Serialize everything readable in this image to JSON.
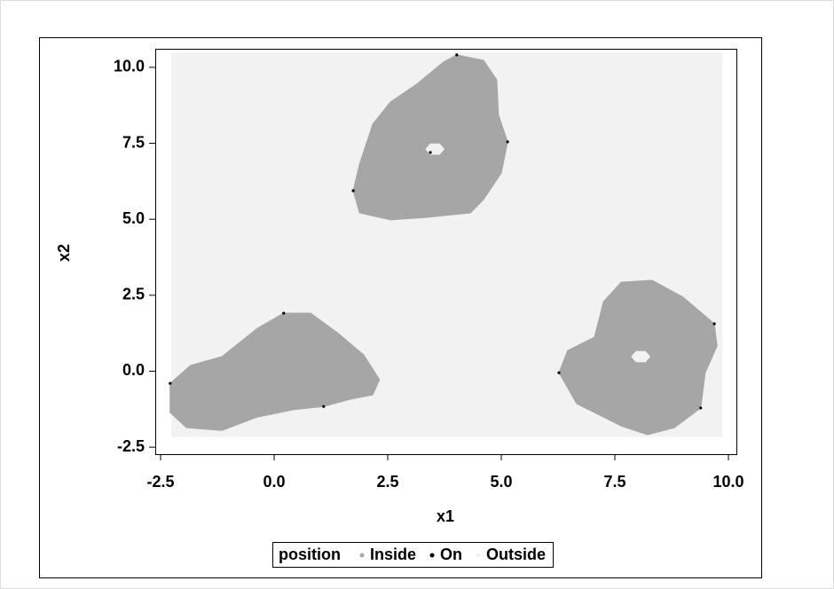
{
  "chart_data": {
    "type": "scatter",
    "xlabel": "x1",
    "ylabel": "x2",
    "legend_title": "position",
    "legend": "bottom",
    "xlim": [
      -2.617,
      10.176
    ],
    "ylim": [
      -2.73,
      10.61
    ],
    "xticks": [
      -2.5,
      {
        "value": 0,
        "label": "0.0"
      },
      2.5,
      {
        "value": 5,
        "label": "5.0"
      },
      7.5,
      {
        "value": 10,
        "label": "10.0"
      }
    ],
    "yticks": [
      -2.5,
      {
        "value": 0,
        "label": "0.0"
      },
      2.5,
      {
        "value": 5,
        "label": "5.0"
      },
      7.5,
      {
        "value": 10,
        "label": "10.0"
      }
    ],
    "series": [
      {
        "name": "Inside",
        "color": "#a6a6a6",
        "x": [
          4.02,
          4.61,
          4.9,
          4.94,
          5.14,
          5.0,
          4.61,
          4.32,
          3.34,
          2.56,
          1.88,
          1.74,
          1.88,
          2.17,
          2.56,
          3.14,
          3.73,
          null,
          -2.29,
          -1.84,
          -1.15,
          -0.37,
          0.21,
          0.8,
          1.39,
          1.97,
          2.32,
          2.17,
          1.68,
          1.09,
          0.41,
          -0.37,
          -1.15,
          -1.93,
          -2.29,
          null,
          7.25,
          7.64,
          8.32,
          9.0,
          9.69,
          9.75,
          9.49,
          9.39,
          8.81,
          8.22,
          7.64,
          6.66,
          6.27,
          6.46,
          7.05
        ],
        "y": [
          10.41,
          10.23,
          9.59,
          8.42,
          7.55,
          6.52,
          5.65,
          5.21,
          5.06,
          4.98,
          5.21,
          5.94,
          6.82,
          8.13,
          8.86,
          9.45,
          10.18,
          null,
          -0.4,
          0.19,
          0.48,
          1.41,
          1.91,
          1.91,
          1.27,
          0.54,
          -0.28,
          -0.78,
          -0.92,
          -1.16,
          -1.27,
          -1.51,
          -1.95,
          -1.86,
          -1.36,
          null,
          2.29,
          2.93,
          2.99,
          2.44,
          1.56,
          0.83,
          -0.05,
          -1.21,
          -1.86,
          -2.09,
          -1.8,
          -1.07,
          -0.05,
          0.68,
          1.12
        ]
      },
      {
        "name": "On",
        "color": "#000000",
        "x": [
          4.02,
          5.14,
          1.74,
          -2.29,
          1.09,
          9.69,
          6.27,
          3.44,
          9.39,
          0.21
        ],
        "y": [
          10.41,
          7.55,
          5.94,
          -0.4,
          -1.16,
          1.56,
          -0.05,
          7.2,
          -1.21,
          1.91
        ]
      },
      {
        "name": "Outside",
        "color": "#f2f2f2",
        "x": [
          -2.25,
          9.86,
          9.86,
          -2.25,
          null,
          3.74,
          3.64,
          3.44,
          3.34,
          3.44,
          3.64,
          null,
          8.27,
          8.17,
          7.97,
          7.87,
          7.97,
          8.17
        ],
        "y": [
          -2.15,
          -2.15,
          10.47,
          10.47,
          null,
          7.31,
          7.48,
          7.48,
          7.31,
          7.14,
          7.14,
          null,
          0.48,
          0.65,
          0.65,
          0.48,
          0.31,
          0.31
        ]
      }
    ]
  }
}
